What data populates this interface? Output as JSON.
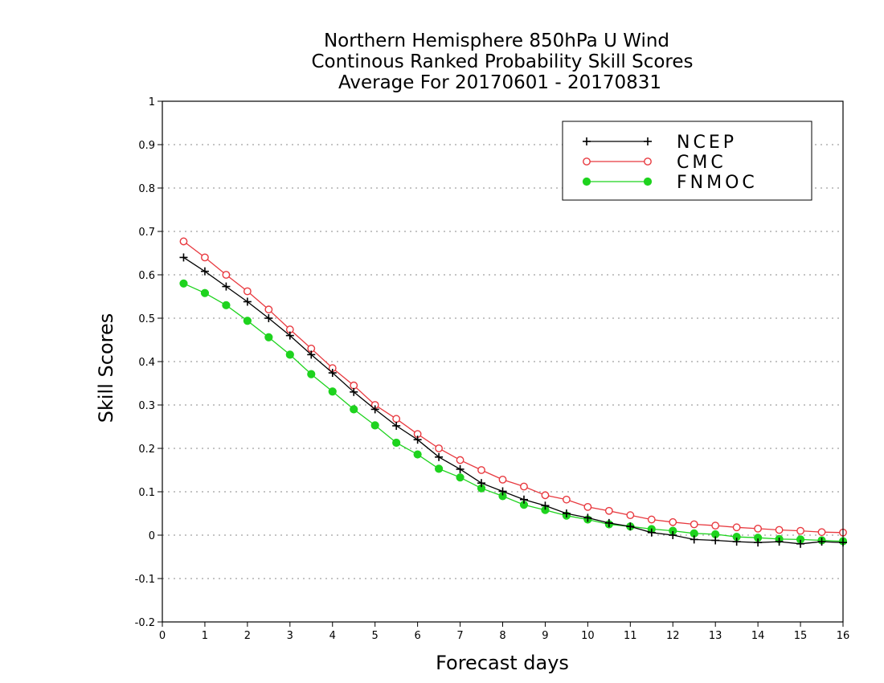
{
  "chart_data": {
    "type": "line",
    "title": "Northern Hemisphere 850hPa U Wind",
    "subtitle": "Continous Ranked Probability Skill Scores",
    "subtitle2": "Average For 20170601 - 20170831",
    "xlabel": "Forecast days",
    "ylabel": "Skill Scores",
    "xlim": [
      0,
      16
    ],
    "ylim": [
      -0.2,
      1
    ],
    "xticks": [
      "0",
      "1",
      "2",
      "3",
      "4",
      "5",
      "6",
      "7",
      "8",
      "9",
      "10",
      "11",
      "12",
      "13",
      "14",
      "15",
      "16"
    ],
    "yticks": [
      "-0.2",
      "-0.1",
      "0",
      "0.1",
      "0.2",
      "0.3",
      "0.4",
      "0.5",
      "0.6",
      "0.7",
      "0.8",
      "0.9",
      "1"
    ],
    "grid": "horizontal dotted",
    "legend_position": "top-right",
    "x": [
      0.5,
      1,
      1.5,
      2,
      2.5,
      3,
      3.5,
      4,
      4.5,
      5,
      5.5,
      6,
      6.5,
      7,
      7.5,
      8,
      8.5,
      9,
      9.5,
      10,
      10.5,
      11,
      11.5,
      12,
      12.5,
      13,
      13.5,
      14,
      14.5,
      15,
      15.5,
      16
    ],
    "series": [
      {
        "name": "NCEP",
        "color": "#000000",
        "marker": "plus",
        "values": [
          0.64,
          0.608,
          0.573,
          0.538,
          0.5,
          0.46,
          0.416,
          0.374,
          0.33,
          0.29,
          0.252,
          0.22,
          0.18,
          0.152,
          0.12,
          0.101,
          0.082,
          0.068,
          0.05,
          0.04,
          0.028,
          0.02,
          0.006,
          0.0,
          -0.01,
          -0.012,
          -0.015,
          -0.017,
          -0.015,
          -0.02,
          -0.015,
          -0.017
        ]
      },
      {
        "name": "CMC",
        "color": "#e8393f",
        "marker": "open-circle",
        "values": [
          0.677,
          0.64,
          0.6,
          0.562,
          0.52,
          0.474,
          0.43,
          0.385,
          0.345,
          0.3,
          0.268,
          0.233,
          0.2,
          0.173,
          0.15,
          0.128,
          0.112,
          0.092,
          0.082,
          0.065,
          0.056,
          0.046,
          0.036,
          0.03,
          0.025,
          0.022,
          0.018,
          0.015,
          0.012,
          0.01,
          0.007,
          0.006
        ]
      },
      {
        "name": "FNMOC",
        "color": "#1ed31e",
        "marker": "filled-circle",
        "values": [
          0.58,
          0.558,
          0.53,
          0.494,
          0.456,
          0.416,
          0.371,
          0.331,
          0.29,
          0.253,
          0.213,
          0.186,
          0.153,
          0.133,
          0.108,
          0.09,
          0.07,
          0.058,
          0.045,
          0.036,
          0.025,
          0.02,
          0.014,
          0.01,
          0.004,
          0.002,
          -0.004,
          -0.006,
          -0.009,
          -0.01,
          -0.012,
          -0.014
        ]
      }
    ]
  }
}
